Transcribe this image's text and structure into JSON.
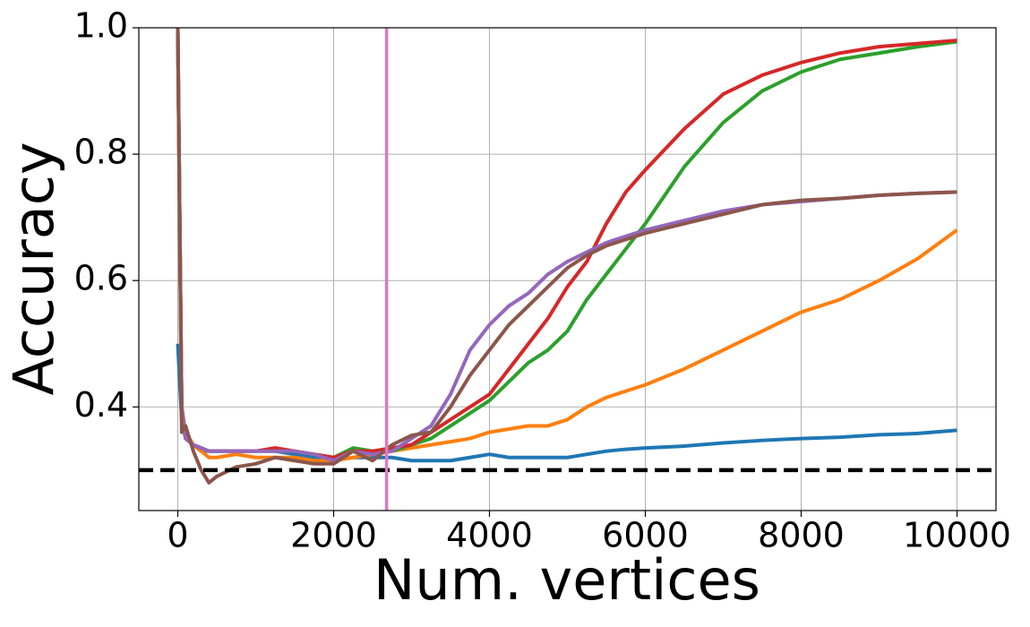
{
  "chart_data": {
    "type": "line",
    "x_label": "Num. vertices",
    "y_label": "Accuracy",
    "x": [
      0,
      50,
      100,
      200,
      300,
      400,
      500,
      750,
      1000,
      1250,
      1500,
      1750,
      2000,
      2250,
      2500,
      2750,
      3000,
      3250,
      3500,
      3750,
      4000,
      4250,
      4500,
      4750,
      5000,
      5250,
      5500,
      5750,
      6000,
      6500,
      7000,
      7500,
      8000,
      8500,
      9000,
      9500,
      10000
    ],
    "series": [
      {
        "color": "#1f77b4",
        "values": [
          0.5,
          0.38,
          0.35,
          0.34,
          0.33,
          0.33,
          0.33,
          0.33,
          0.33,
          0.33,
          0.325,
          0.32,
          0.315,
          0.32,
          0.32,
          0.32,
          0.315,
          0.315,
          0.315,
          0.32,
          0.325,
          0.32,
          0.32,
          0.32,
          0.32,
          0.325,
          0.33,
          0.333,
          0.335,
          0.338,
          0.343,
          0.347,
          0.35,
          0.352,
          0.356,
          0.358,
          0.363
        ]
      },
      {
        "color": "#ff7f0e",
        "values": [
          1.0,
          0.4,
          0.36,
          0.34,
          0.33,
          0.32,
          0.32,
          0.325,
          0.32,
          0.32,
          0.32,
          0.315,
          0.315,
          0.32,
          0.325,
          0.33,
          0.335,
          0.34,
          0.345,
          0.35,
          0.36,
          0.365,
          0.37,
          0.37,
          0.38,
          0.4,
          0.415,
          0.425,
          0.435,
          0.46,
          0.49,
          0.52,
          0.55,
          0.57,
          0.6,
          0.635,
          0.68
        ]
      },
      {
        "color": "#2ca02c",
        "values": [
          1.0,
          0.4,
          0.35,
          0.34,
          0.335,
          0.33,
          0.33,
          0.33,
          0.33,
          0.33,
          0.33,
          0.325,
          0.32,
          0.335,
          0.33,
          0.33,
          0.34,
          0.35,
          0.37,
          0.39,
          0.41,
          0.44,
          0.47,
          0.49,
          0.52,
          0.57,
          0.61,
          0.65,
          0.69,
          0.78,
          0.85,
          0.9,
          0.93,
          0.95,
          0.96,
          0.97,
          0.978
        ]
      },
      {
        "color": "#d62728",
        "values": [
          1.0,
          0.4,
          0.35,
          0.34,
          0.335,
          0.33,
          0.33,
          0.33,
          0.33,
          0.335,
          0.33,
          0.325,
          0.32,
          0.33,
          0.33,
          0.335,
          0.34,
          0.36,
          0.38,
          0.4,
          0.42,
          0.46,
          0.5,
          0.54,
          0.59,
          0.63,
          0.69,
          0.74,
          0.775,
          0.84,
          0.895,
          0.925,
          0.945,
          0.96,
          0.97,
          0.975,
          0.98
        ]
      },
      {
        "color": "#9467bd",
        "values": [
          1.0,
          0.4,
          0.35,
          0.34,
          0.335,
          0.33,
          0.33,
          0.33,
          0.33,
          0.33,
          0.33,
          0.325,
          0.315,
          0.33,
          0.325,
          0.33,
          0.35,
          0.37,
          0.42,
          0.49,
          0.53,
          0.56,
          0.58,
          0.61,
          0.63,
          0.645,
          0.66,
          0.67,
          0.68,
          0.695,
          0.71,
          0.72,
          0.725,
          0.73,
          0.735,
          0.738,
          0.74
        ]
      },
      {
        "color": "#8c564b",
        "values": [
          1.0,
          0.36,
          0.37,
          0.33,
          0.3,
          0.28,
          0.29,
          0.305,
          0.31,
          0.32,
          0.315,
          0.31,
          0.31,
          0.33,
          0.315,
          0.34,
          0.355,
          0.36,
          0.4,
          0.45,
          0.49,
          0.53,
          0.56,
          0.59,
          0.62,
          0.64,
          0.655,
          0.665,
          0.675,
          0.69,
          0.705,
          0.72,
          0.727,
          0.73,
          0.735,
          0.738,
          0.74
        ]
      }
    ],
    "reference_lines": [
      {
        "axis": "y",
        "value": 0.3,
        "color": "#000000",
        "style": "dashed"
      },
      {
        "axis": "x",
        "value": 2680,
        "color": "#e377c2",
        "style": "solid"
      }
    ],
    "xlim": [
      -500,
      10500
    ],
    "ylim": [
      0.236,
      1.0
    ],
    "xticks": [
      0,
      2000,
      4000,
      6000,
      8000,
      10000
    ],
    "yticks": [
      0.4,
      0.6,
      0.8,
      {
        "value": 1,
        "label": "1.0"
      }
    ],
    "grid": true
  }
}
